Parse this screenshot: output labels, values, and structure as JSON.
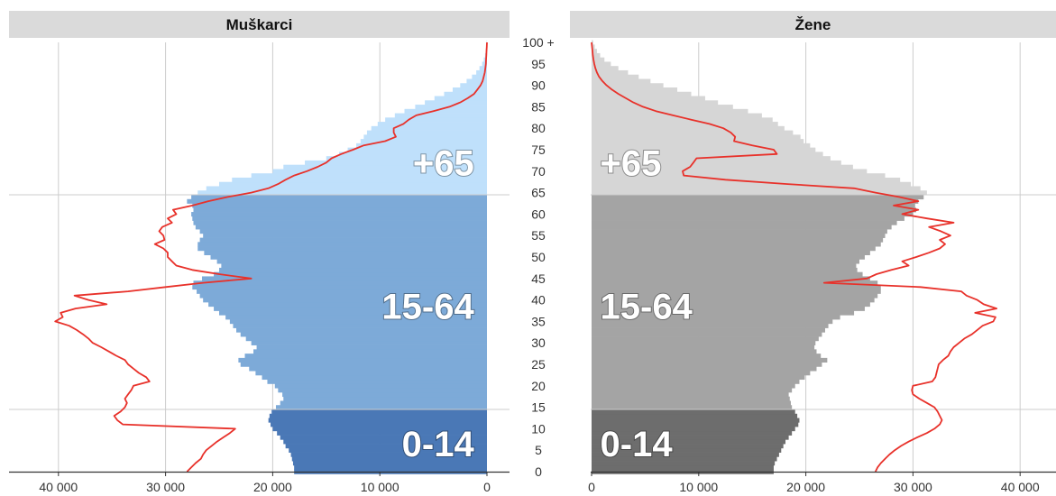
{
  "chart_data": {
    "type": "population-pyramid",
    "age_axis": {
      "ticks": [
        "0",
        "5",
        "10",
        "15",
        "20",
        "25",
        "30",
        "35",
        "40",
        "45",
        "50",
        "55",
        "60",
        "65",
        "70",
        "75",
        "80",
        "85",
        "90",
        "95",
        "100 +"
      ]
    },
    "age_groups": [
      {
        "label": "0-14",
        "from": 0,
        "to": 14
      },
      {
        "label": "15-64",
        "from": 15,
        "to": 64
      },
      {
        "label": "+65",
        "from": 65,
        "to": 100
      }
    ],
    "panels": [
      {
        "title": "Muškarci",
        "direction": "left",
        "xlim": [
          0,
          45000
        ],
        "xticks": [
          0,
          10000,
          20000,
          30000,
          40000
        ],
        "xtick_labels": [
          "0",
          "10 000",
          "20 000",
          "30 000",
          "40 000"
        ],
        "colors": {
          "0-14": "#4a78b6",
          "15-64": "#7daad8",
          "+65": "#bfe0fb"
        },
        "bars": [
          18000,
          18000,
          18100,
          18200,
          18300,
          18500,
          18800,
          19000,
          19300,
          19600,
          20000,
          20200,
          20400,
          20300,
          20100,
          19700,
          19300,
          19000,
          19100,
          19500,
          19800,
          20500,
          21000,
          21600,
          22200,
          23000,
          23200,
          22600,
          21800,
          21500,
          22000,
          22500,
          23000,
          23400,
          23700,
          24000,
          24400,
          25000,
          25500,
          26000,
          26500,
          26800,
          27100,
          27500,
          27400,
          26600,
          25500,
          25000,
          24800,
          25200,
          25800,
          26400,
          27000,
          27000,
          26800,
          26500,
          26800,
          27200,
          27400,
          27500,
          27600,
          27400,
          27500,
          28000,
          27600,
          27000,
          26200,
          25000,
          23800,
          22000,
          20000,
          19000,
          17000,
          15000,
          13800,
          13000,
          12200,
          11800,
          11500,
          11200,
          10800,
          10200,
          9500,
          8600,
          7700,
          6700,
          5800,
          4900,
          4000,
          3200,
          2500,
          1900,
          1400,
          1000,
          700,
          450,
          300,
          180,
          100,
          60,
          30
        ],
        "line": [
          28000,
          27600,
          27200,
          26700,
          26500,
          26200,
          25700,
          25200,
          24600,
          24000,
          23500,
          34000,
          34500,
          34800,
          34200,
          33800,
          33600,
          33800,
          33500,
          33200,
          33000,
          31500,
          31800,
          32500,
          33000,
          33500,
          33800,
          34600,
          35300,
          36000,
          36800,
          37200,
          37700,
          38300,
          39000,
          40300,
          39600,
          39800,
          38400,
          35500,
          37200,
          38500,
          33500,
          30000,
          26500,
          22000,
          25000,
          27500,
          29000,
          29400,
          29800,
          29800,
          30200,
          31000,
          30100,
          30200,
          30600,
          30300,
          29400,
          29800,
          29000,
          29300,
          27500,
          26000,
          24200,
          22000,
          20400,
          19500,
          18800,
          18000,
          16800,
          15800,
          15000,
          14500,
          13600,
          12500,
          11500,
          9500,
          8500,
          8700,
          8700,
          7800,
          7300,
          6600,
          5000,
          3500,
          2500,
          1800,
          1200,
          900,
          600,
          400,
          300,
          200,
          150,
          100,
          80,
          60,
          40,
          20,
          0
        ]
      },
      {
        "title": "Žene",
        "direction": "right",
        "xlim": [
          0,
          43000
        ],
        "xticks": [
          0,
          10000,
          20000,
          30000,
          40000
        ],
        "xtick_labels": [
          "0",
          "10 000",
          "20 000",
          "30 000",
          "40 000"
        ],
        "colors": {
          "0-14": "#6d6d6d",
          "15-64": "#a4a4a4",
          "+65": "#d6d6d6"
        },
        "bars": [
          17000,
          17000,
          17100,
          17300,
          17500,
          17700,
          17900,
          18100,
          18400,
          18700,
          19000,
          19300,
          19400,
          19200,
          19000,
          18700,
          18600,
          18500,
          18400,
          18700,
          19000,
          19400,
          19900,
          20400,
          21000,
          21500,
          22000,
          21400,
          21000,
          20800,
          20900,
          21200,
          21500,
          21800,
          22100,
          22500,
          23200,
          24500,
          25500,
          26000,
          26400,
          26700,
          27000,
          27000,
          26700,
          26000,
          25300,
          24800,
          24700,
          25000,
          25500,
          26000,
          26500,
          27000,
          27200,
          27400,
          27600,
          28000,
          28500,
          29200,
          30000,
          30300,
          30200,
          30500,
          31000,
          31300,
          30700,
          29800,
          28800,
          27400,
          25700,
          24400,
          23300,
          22300,
          21600,
          20900,
          20400,
          19800,
          19500,
          18800,
          18000,
          17400,
          16900,
          15900,
          14600,
          13200,
          11800,
          10600,
          9300,
          8000,
          6700,
          5500,
          4400,
          3400,
          2500,
          1800,
          1200,
          800,
          500,
          300,
          150
        ],
        "line": [
          26500,
          26700,
          27000,
          27400,
          27800,
          28300,
          28900,
          29600,
          30400,
          31300,
          32000,
          32500,
          32700,
          32500,
          32300,
          32000,
          31300,
          30600,
          30000,
          29900,
          30000,
          31800,
          32100,
          32200,
          32300,
          32400,
          32800,
          33300,
          33500,
          33800,
          34300,
          34800,
          35500,
          36000,
          36500,
          37500,
          37700,
          35800,
          37800,
          36600,
          36000,
          35000,
          34500,
          30700,
          21700,
          25700,
          26600,
          28000,
          29600,
          29000,
          30300,
          31500,
          32500,
          33000,
          32500,
          33500,
          32600,
          31500,
          33800,
          31300,
          29000,
          30500,
          28200,
          30500,
          28700,
          26500,
          24500,
          18300,
          12500,
          8600,
          8500,
          9200,
          9500,
          9800,
          17300,
          17000,
          15000,
          13300,
          13400,
          13000,
          12300,
          11000,
          9300,
          7600,
          6000,
          4800,
          3900,
          3200,
          2500,
          1900,
          1400,
          1000,
          700,
          500,
          350,
          250,
          180,
          120,
          80,
          40,
          0
        ]
      }
    ],
    "colors": {
      "line": "#e8312a",
      "grid": "#cccccc",
      "strip": "#dadada"
    }
  }
}
